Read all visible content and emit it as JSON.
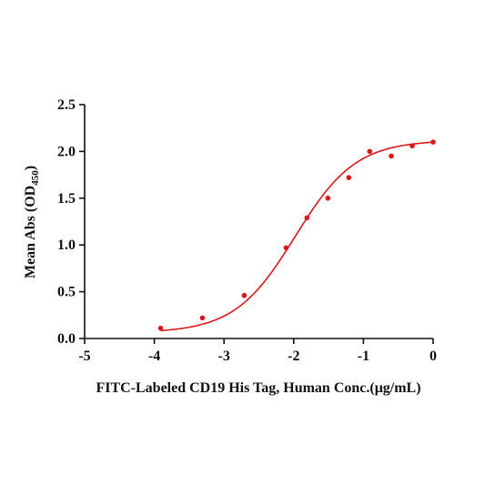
{
  "chart_data": {
    "type": "scatter",
    "xlabel": "FITC-Labeled CD19 His Tag, Human  Conc.(μg/mL)",
    "ylabel_main": "Mean Abs (OD",
    "ylabel_sub": "450",
    "ylabel_close": ")",
    "xlim": [
      -5,
      0
    ],
    "ylim": [
      0,
      2.5
    ],
    "x_ticks": [
      -5,
      -4,
      -3,
      -2,
      -1,
      0
    ],
    "x_tick_labels": [
      "-5",
      "-4",
      "-3",
      "-2",
      "-1",
      "0"
    ],
    "y_ticks": [
      0,
      0.5,
      1.0,
      1.5,
      2.0,
      2.5
    ],
    "y_tick_labels": [
      "0.0",
      "0.5",
      "1.0",
      "1.5",
      "2.0",
      "2.5"
    ],
    "grid": false,
    "color": "#d7191c",
    "points": {
      "x": [
        -3.91,
        -3.31,
        -2.71,
        -2.11,
        -1.81,
        -1.51,
        -1.21,
        -0.91,
        -0.6,
        -0.3,
        0.0
      ],
      "y": [
        0.11,
        0.22,
        0.46,
        0.97,
        1.29,
        1.5,
        1.72,
        2.0,
        1.95,
        2.06,
        2.1
      ]
    },
    "fit": {
      "model": "4PL",
      "bottom": 0.06,
      "top": 2.12,
      "logEC50": -1.98,
      "hill": 1.0
    }
  }
}
